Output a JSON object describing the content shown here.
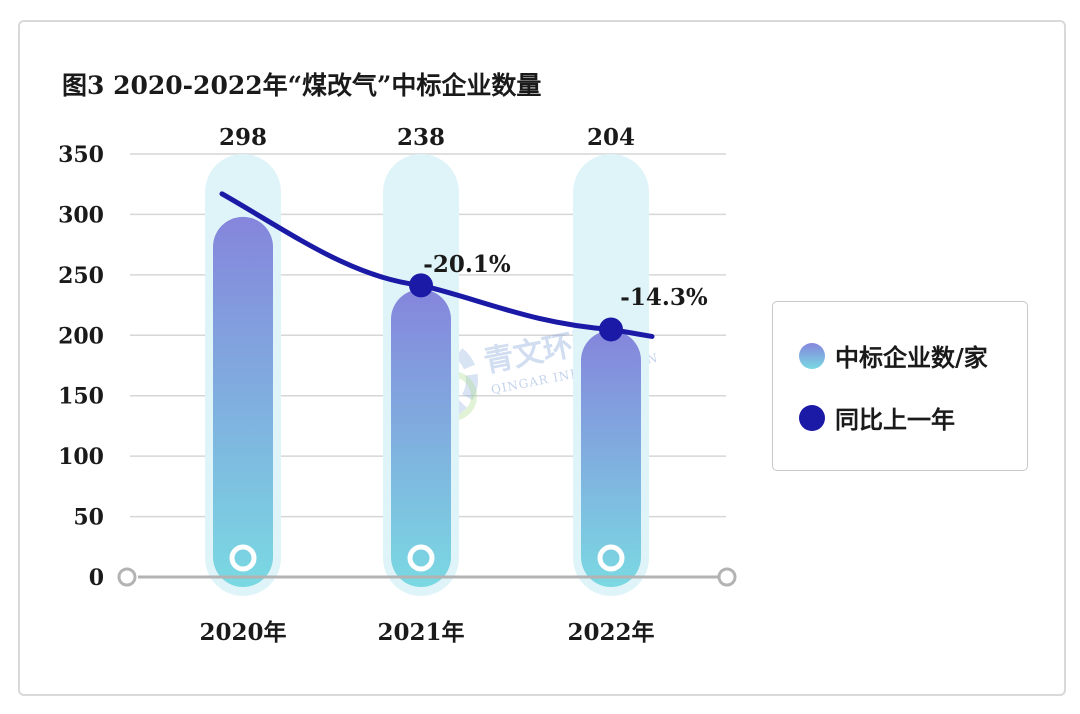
{
  "title": "图3 2020-2022年“煤改气”中标企业数量",
  "watermark": {
    "text": "青文环资讯",
    "sub": "QINGAR INFORMATION"
  },
  "legend": {
    "bar_label": "中标企业数/家",
    "line_label": "同比上一年"
  },
  "colors": {
    "bar_top": "#8585dc",
    "bar_bottom": "#7ad9e2",
    "capsule": "#dff4f8",
    "line": "#1a1aa6",
    "grid": "#d6d6d6",
    "axis": "#b3b3b3"
  },
  "chart_data": {
    "type": "bar",
    "title": "图3 2020-2022年“煤改气”中标企业数量",
    "categories": [
      "2020年",
      "2021年",
      "2022年"
    ],
    "ylim": [
      0,
      350
    ],
    "yticks": [
      0,
      50,
      100,
      150,
      200,
      250,
      300,
      350
    ],
    "grid": true,
    "legend_position": "right",
    "series": [
      {
        "name": "中标企业数/家",
        "type": "bar",
        "values": [
          298,
          238,
          204
        ],
        "labels": [
          "298",
          "238",
          "204"
        ]
      },
      {
        "name": "同比上一年",
        "type": "line",
        "values": [
          null,
          -20.1,
          -14.3
        ],
        "labels": [
          "",
          "-20.1%",
          "-14.3%"
        ]
      }
    ]
  }
}
